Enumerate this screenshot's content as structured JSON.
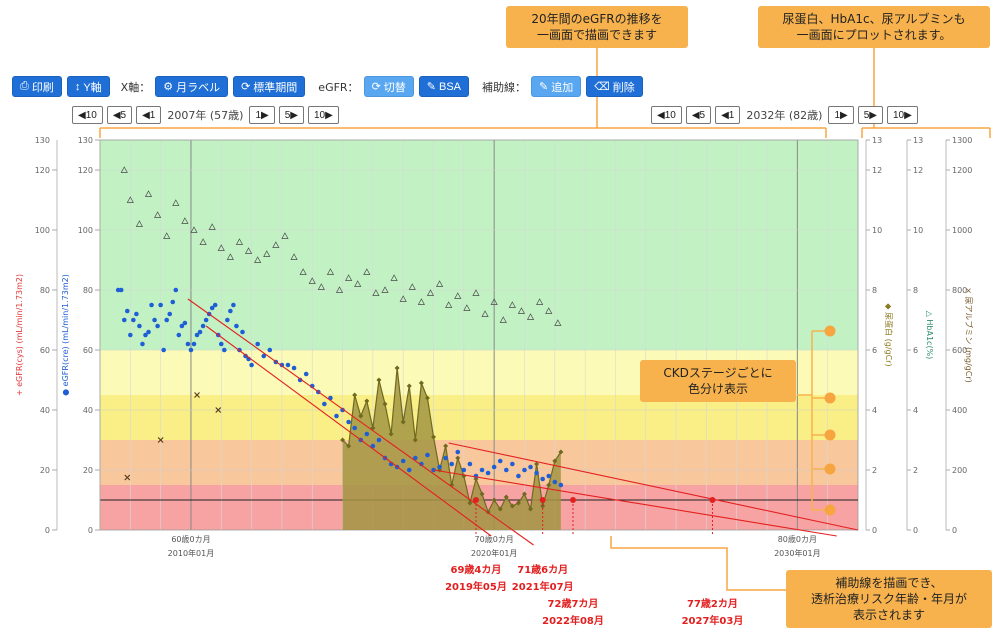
{
  "callouts": {
    "top_center": [
      "20年間のeGFRの推移を",
      "一画面で描画できます"
    ],
    "top_right": [
      "尿蛋白、HbA1c、尿アルブミンも",
      "一画面にプロットされます。"
    ],
    "ckd": [
      "CKDステージごとに",
      "色分け表示"
    ],
    "bottom_right": [
      "補助線を描画でき、",
      "透析治療リスク年齢・年月が",
      "表示されます"
    ]
  },
  "toolbar": {
    "print": "印刷",
    "y_axis": "Y軸",
    "x_axis_label": "X軸：",
    "month_label": "月ラベル",
    "standard_period": "標準期間",
    "egfr_label": "eGFR：",
    "switch": "切替",
    "bsa": "BSA",
    "aux_label": "補助線：",
    "add": "追加",
    "delete": "削除"
  },
  "icons": {
    "print": "printer-icon",
    "y_axis": "vertical-arrows-icon",
    "month_label": "gear-icon",
    "standard_period": "refresh-icon",
    "switch": "refresh-icon",
    "bsa": "pencil-icon",
    "add": "pencil-icon",
    "delete": "eraser-icon"
  },
  "nav_left": {
    "b10": "◀10",
    "b5": "◀5",
    "b1": "◀1",
    "label": "2007年 (57歳)",
    "f1": "1▶",
    "f5": "5▶",
    "f10": "10▶"
  },
  "nav_right": {
    "b10": "◀10",
    "b5": "◀5",
    "b1": "◀1",
    "label": "2032年 (82歳)",
    "f1": "1▶",
    "f5": "5▶",
    "f10": "10▶"
  },
  "chart_data": {
    "type": "scatter",
    "x_range": [
      2007.0,
      2032.0
    ],
    "y_left_range": [
      0,
      130
    ],
    "y_left_ticks": [
      0,
      20,
      40,
      60,
      80,
      100,
      120
    ],
    "y_left_ticks_inner": [
      0,
      20,
      40,
      60,
      80,
      100,
      120,
      130
    ],
    "ylabel_left_outer": "+ eGFR(cys) (mL/min/1.73m2)",
    "ylabel_left_inner": "● eGFR(cre) (mL/min/1.73m2)",
    "right_axes": [
      {
        "label": "◆ 尿蛋白 (g/gCr)",
        "ticks": [
          "0",
          "2",
          "4",
          "6",
          "8",
          "10",
          "12",
          "13"
        ],
        "color": "#8a7a20"
      },
      {
        "label": "△ HbA1c(%)",
        "ticks": [
          "0",
          "2",
          "4",
          "6",
          "8",
          "10",
          "12",
          "13"
        ],
        "color": "#2e8b6e"
      },
      {
        "label": "× 尿アルブミン (mg/gCr)",
        "ticks": [
          "0",
          "200",
          "400",
          "600",
          "800",
          "1000",
          "1200",
          "1300"
        ],
        "color": "#7a5a2a"
      }
    ],
    "ckd_bands": [
      {
        "from": 0,
        "to": 15,
        "color": "#f8a3a3"
      },
      {
        "from": 15,
        "to": 30,
        "color": "#f9c79c"
      },
      {
        "from": 30,
        "to": 45,
        "color": "#f9ef86"
      },
      {
        "from": 45,
        "to": 60,
        "color": "#fbfab6"
      },
      {
        "from": 60,
        "to": 130,
        "color": "#c2f2c4"
      }
    ],
    "x_ticks": [
      {
        "x": 2010.0,
        "age": "60歳0カ月",
        "date": "2010年01月"
      },
      {
        "x": 2020.0,
        "age": "70歳0カ月",
        "date": "2020年01月"
      },
      {
        "x": 2030.0,
        "age": "80歳0カ月",
        "date": "2030年01月"
      }
    ],
    "egfr_cre": {
      "name": "eGFR(cre)",
      "color": "#1f5fd6",
      "x": [
        2007.6,
        2007.7,
        2007.8,
        2007.9,
        2008.0,
        2008.1,
        2008.2,
        2008.3,
        2008.4,
        2008.5,
        2008.6,
        2008.7,
        2008.8,
        2008.9,
        2009.0,
        2009.1,
        2009.2,
        2009.3,
        2009.4,
        2009.5,
        2009.6,
        2009.7,
        2009.8,
        2009.9,
        2010.0,
        2010.1,
        2010.2,
        2010.3,
        2010.4,
        2010.5,
        2010.6,
        2010.7,
        2010.8,
        2010.9,
        2011.0,
        2011.1,
        2011.2,
        2011.3,
        2011.4,
        2011.5,
        2011.6,
        2011.7,
        2011.8,
        2011.9,
        2012.0,
        2012.2,
        2012.4,
        2012.6,
        2012.8,
        2013.0,
        2013.2,
        2013.4,
        2013.6,
        2013.8,
        2014.0,
        2014.2,
        2014.4,
        2014.6,
        2014.8,
        2015.0,
        2015.2,
        2015.4,
        2015.6,
        2015.8,
        2016.0,
        2016.2,
        2016.4,
        2016.6,
        2016.8,
        2017.0,
        2017.2,
        2017.4,
        2017.6,
        2017.8,
        2018.0,
        2018.2,
        2018.4,
        2018.6,
        2018.8,
        2019.0,
        2019.2,
        2019.4,
        2019.6,
        2019.8,
        2020.0,
        2020.2,
        2020.4,
        2020.6,
        2020.8,
        2021.0,
        2021.2,
        2021.4,
        2021.6,
        2021.8,
        2022.0,
        2022.2
      ],
      "y": [
        80,
        80,
        70,
        73,
        65,
        70,
        72,
        68,
        62,
        65,
        66,
        75,
        70,
        68,
        75,
        60,
        70,
        72,
        76,
        80,
        65,
        68,
        69,
        62,
        60,
        62,
        65,
        66,
        68,
        70,
        72,
        74,
        75,
        65,
        62,
        60,
        70,
        73,
        75,
        68,
        60,
        66,
        58,
        57,
        55,
        62,
        58,
        60,
        56,
        55,
        55,
        54,
        50,
        52,
        48,
        46,
        42,
        44,
        38,
        40,
        36,
        34,
        30,
        32,
        28,
        30,
        24,
        22,
        21,
        23,
        20,
        24,
        22,
        25,
        20,
        21,
        24,
        22,
        26,
        20,
        22,
        18,
        20,
        19,
        21,
        23,
        20,
        22,
        18,
        20,
        21,
        19,
        17,
        18,
        16,
        15
      ]
    },
    "protein": {
      "name": "尿蛋白",
      "color": "#8e8430",
      "x": [
        2015.0,
        2015.2,
        2015.4,
        2015.6,
        2015.8,
        2016.0,
        2016.2,
        2016.4,
        2016.6,
        2016.8,
        2017.0,
        2017.2,
        2017.4,
        2017.6,
        2017.8,
        2018.0,
        2018.2,
        2018.4,
        2018.6,
        2018.8,
        2019.0,
        2019.2,
        2019.4,
        2019.6,
        2019.8,
        2020.0,
        2020.2,
        2020.4,
        2020.6,
        2020.8,
        2021.0,
        2021.2,
        2021.4,
        2021.6,
        2021.8,
        2022.0,
        2022.2
      ],
      "y": [
        3.0,
        2.8,
        4.5,
        3.8,
        4.3,
        3.4,
        5.0,
        4.2,
        3.2,
        5.4,
        3.6,
        4.8,
        3.0,
        4.9,
        4.4,
        3.1,
        2.0,
        2.8,
        1.5,
        2.4,
        1.8,
        0.9,
        1.7,
        1.2,
        0.6,
        1.0,
        0.7,
        1.1,
        0.8,
        0.9,
        1.2,
        0.7,
        2.2,
        0.8,
        1.5,
        2.3,
        2.6
      ]
    },
    "hba1c": {
      "name": "HbA1c",
      "color": "#4a4a4a",
      "x": [
        2007.8,
        2008.0,
        2008.3,
        2008.6,
        2008.9,
        2009.2,
        2009.5,
        2009.8,
        2010.1,
        2010.4,
        2010.7,
        2011.0,
        2011.3,
        2011.6,
        2011.9,
        2012.2,
        2012.5,
        2012.8,
        2013.1,
        2013.4,
        2013.7,
        2014.0,
        2014.3,
        2014.6,
        2014.9,
        2015.2,
        2015.5,
        2015.8,
        2016.1,
        2016.4,
        2016.7,
        2017.0,
        2017.3,
        2017.6,
        2017.9,
        2018.2,
        2018.5,
        2018.8,
        2019.1,
        2019.4,
        2019.7,
        2020.0,
        2020.3,
        2020.6,
        2020.9,
        2021.2,
        2021.5,
        2021.8,
        2022.1
      ],
      "y": [
        12.0,
        11.0,
        10.2,
        11.2,
        10.5,
        9.8,
        10.9,
        10.3,
        10.0,
        9.6,
        10.1,
        9.4,
        9.1,
        9.6,
        9.3,
        9.0,
        9.2,
        9.5,
        9.8,
        9.1,
        8.6,
        8.3,
        8.1,
        8.6,
        8.0,
        8.4,
        8.2,
        8.6,
        7.9,
        8.0,
        8.4,
        7.7,
        8.1,
        7.6,
        7.9,
        8.2,
        7.5,
        7.8,
        7.4,
        7.9,
        7.2,
        7.6,
        7.0,
        7.5,
        7.3,
        7.1,
        7.6,
        7.3,
        6.9
      ]
    },
    "albumin": {
      "name": "尿アルブミン",
      "color": "#5a3a1a",
      "x": [
        2007.9,
        2009.0,
        2010.2,
        2010.9
      ],
      "y": [
        175,
        300,
        450,
        400
      ]
    },
    "aux_lines": [
      {
        "x1": 2010.5,
        "y1": 68,
        "x2": 2019.9,
        "y2": -2
      },
      {
        "x1": 2009.9,
        "y1": 77,
        "x2": 2021.3,
        "y2": -5
      },
      {
        "x1": 2018.5,
        "y1": 29,
        "x2": 2032.0,
        "y2": 0
      },
      {
        "x1": 2018.0,
        "y1": 20,
        "x2": 2031.3,
        "y2": -2
      }
    ],
    "dialysis_line": 10,
    "risk_points": [
      {
        "x": 2019.4,
        "age": "69歳4カ月",
        "date": "2019年05月",
        "row": "top"
      },
      {
        "x": 2021.6,
        "age": "71歳6カ月",
        "date": "2021年07月",
        "row": "top"
      },
      {
        "x": 2022.6,
        "age": "72歳7カ月",
        "date": "2022年08月",
        "row": "bottom"
      },
      {
        "x": 2027.2,
        "age": "77歳2カ月",
        "date": "2027年03月",
        "row": "bottom"
      }
    ]
  }
}
